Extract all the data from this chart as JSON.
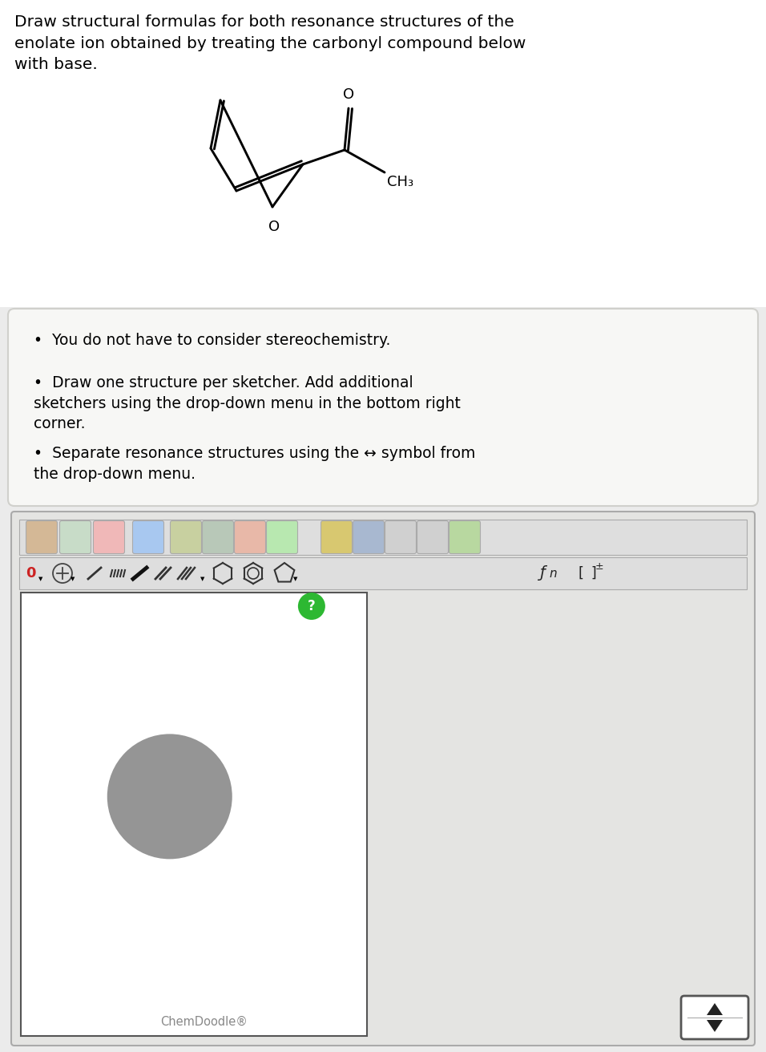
{
  "bg_color": "#ebebeb",
  "white": "#ffffff",
  "instr_bg": "#f7f7f5",
  "instr_border": "#d0d0cc",
  "toolbar_bg": "#dedede",
  "toolbar_border": "#aaaaaa",
  "cd_outer_bg": "#e4e4e2",
  "title_text": "Draw structural formulas for both resonance structures of the\nenolate ion obtained by treating the carbonyl compound below\nwith base.",
  "bullet1": "You do not have to consider stereochemistry.",
  "bullet2": "Draw one structure per sketcher. Add additional\nsketchers using the drop-down menu in the bottom right\ncorner.",
  "bullet3": "Separate resonance structures using the ↔ symbol from\nthe drop-down menu.",
  "chemdoodle_label": "ChemDoodle®",
  "font_title": 14.5,
  "font_bullet": 13.5,
  "font_chem": 13,
  "font_small": 10.5,
  "lw": 2.1
}
